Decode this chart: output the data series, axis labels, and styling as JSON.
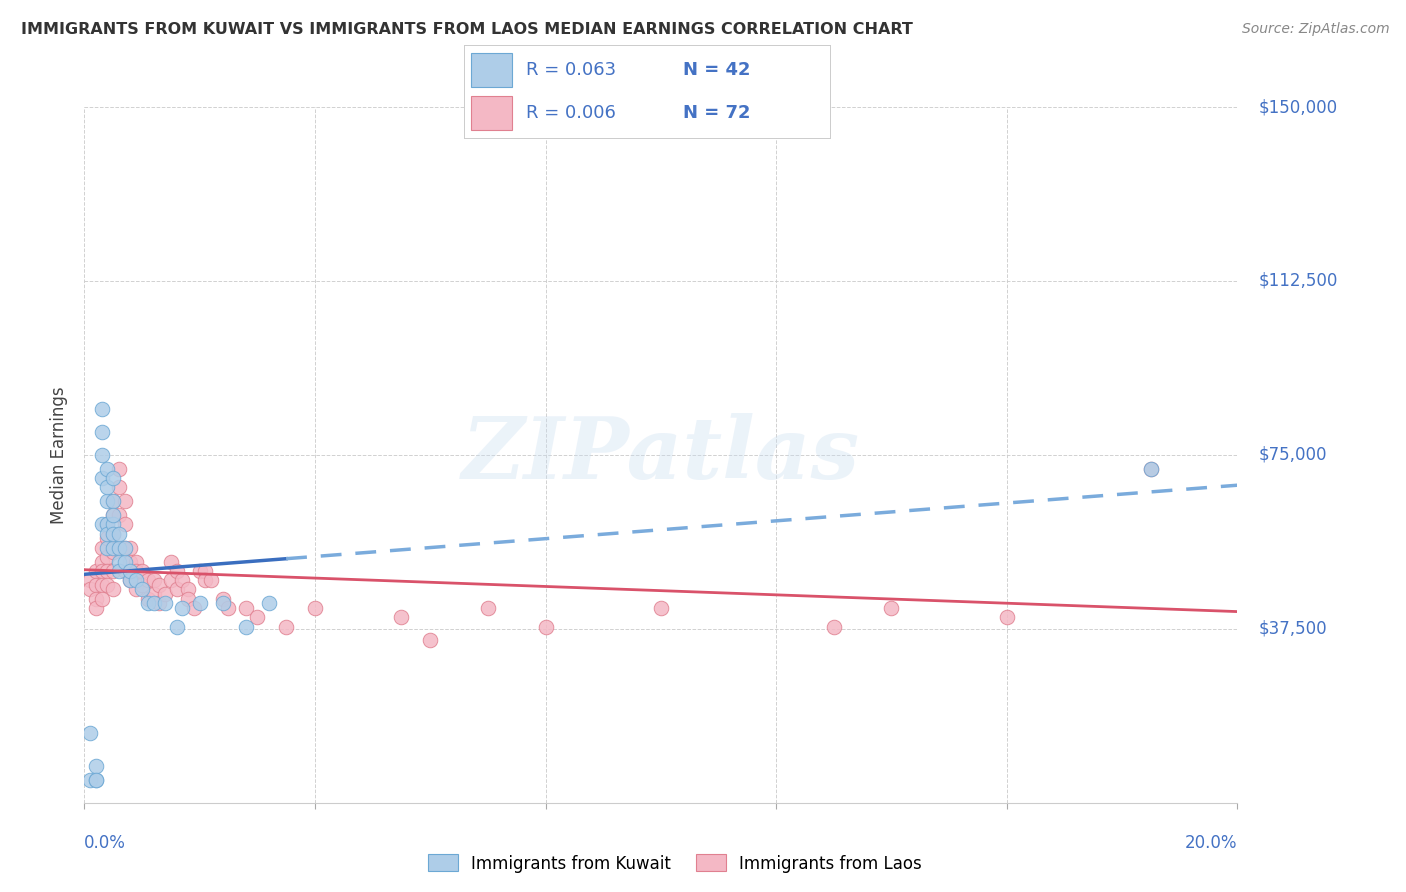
{
  "title": "IMMIGRANTS FROM KUWAIT VS IMMIGRANTS FROM LAOS MEDIAN EARNINGS CORRELATION CHART",
  "source": "Source: ZipAtlas.com",
  "ylabel": "Median Earnings",
  "legend_kuwait": "Immigrants from Kuwait",
  "legend_laos": "Immigrants from Laos",
  "kuwait_R": "0.063",
  "kuwait_N": "42",
  "laos_R": "0.006",
  "laos_N": "72",
  "xlim": [
    0.0,
    0.2
  ],
  "ylim": [
    0,
    150000
  ],
  "yticks": [
    0,
    37500,
    75000,
    112500,
    150000
  ],
  "ytick_labels": [
    "",
    "$37,500",
    "$75,000",
    "$112,500",
    "$150,000"
  ],
  "color_kuwait_face": "#AECDE8",
  "color_kuwait_edge": "#6CA8D4",
  "color_laos_face": "#F4B8C5",
  "color_laos_edge": "#E08090",
  "color_kuwait_trend_solid": "#3A6EBF",
  "color_kuwait_trend_dash": "#7AABDC",
  "color_laos_trend": "#D9526A",
  "color_axis_blue": "#4472C4",
  "color_title": "#333333",
  "color_source": "#888888",
  "background_color": "#FFFFFF",
  "kuwait_x": [
    0.001,
    0.001,
    0.002,
    0.002,
    0.002,
    0.003,
    0.003,
    0.003,
    0.003,
    0.003,
    0.004,
    0.004,
    0.004,
    0.004,
    0.004,
    0.004,
    0.005,
    0.005,
    0.005,
    0.005,
    0.005,
    0.005,
    0.006,
    0.006,
    0.006,
    0.006,
    0.007,
    0.007,
    0.008,
    0.008,
    0.009,
    0.01,
    0.011,
    0.012,
    0.014,
    0.016,
    0.017,
    0.02,
    0.024,
    0.028,
    0.032,
    0.185
  ],
  "kuwait_y": [
    5000,
    15000,
    5000,
    8000,
    5000,
    85000,
    60000,
    70000,
    80000,
    75000,
    65000,
    68000,
    72000,
    60000,
    55000,
    58000,
    60000,
    65000,
    55000,
    70000,
    62000,
    58000,
    55000,
    58000,
    52000,
    50000,
    52000,
    55000,
    48000,
    50000,
    48000,
    46000,
    43000,
    43000,
    43000,
    38000,
    42000,
    43000,
    43000,
    38000,
    43000,
    72000
  ],
  "laos_x": [
    0.001,
    0.001,
    0.002,
    0.002,
    0.002,
    0.002,
    0.003,
    0.003,
    0.003,
    0.003,
    0.003,
    0.004,
    0.004,
    0.004,
    0.004,
    0.004,
    0.005,
    0.005,
    0.005,
    0.005,
    0.005,
    0.005,
    0.006,
    0.006,
    0.006,
    0.006,
    0.007,
    0.007,
    0.007,
    0.007,
    0.008,
    0.008,
    0.008,
    0.009,
    0.009,
    0.009,
    0.01,
    0.01,
    0.011,
    0.011,
    0.012,
    0.012,
    0.013,
    0.013,
    0.014,
    0.015,
    0.015,
    0.016,
    0.016,
    0.017,
    0.018,
    0.018,
    0.019,
    0.02,
    0.021,
    0.021,
    0.022,
    0.024,
    0.025,
    0.028,
    0.03,
    0.035,
    0.04,
    0.055,
    0.06,
    0.07,
    0.08,
    0.1,
    0.13,
    0.14,
    0.16,
    0.185
  ],
  "laos_y": [
    48000,
    46000,
    50000,
    47000,
    44000,
    42000,
    55000,
    52000,
    50000,
    47000,
    44000,
    60000,
    57000,
    53000,
    50000,
    47000,
    65000,
    62000,
    58000,
    54000,
    50000,
    46000,
    72000,
    68000,
    62000,
    55000,
    65000,
    60000,
    55000,
    50000,
    55000,
    52000,
    48000,
    52000,
    50000,
    46000,
    50000,
    47000,
    48000,
    44000,
    48000,
    45000,
    47000,
    43000,
    45000,
    52000,
    48000,
    50000,
    46000,
    48000,
    46000,
    44000,
    42000,
    50000,
    50000,
    48000,
    48000,
    44000,
    42000,
    42000,
    40000,
    38000,
    42000,
    40000,
    35000,
    42000,
    38000,
    42000,
    38000,
    42000,
    40000,
    72000
  ]
}
